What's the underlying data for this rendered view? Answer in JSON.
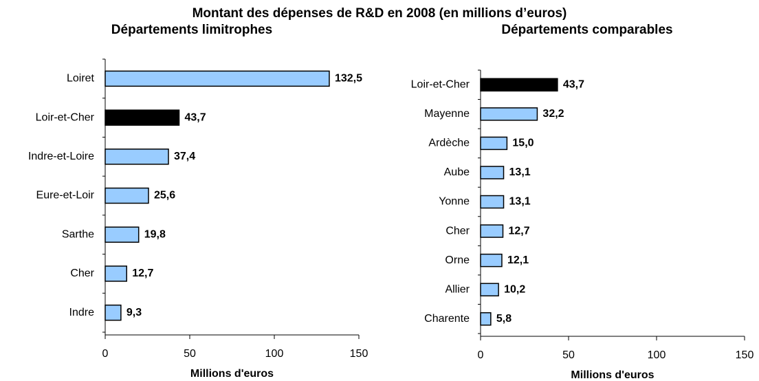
{
  "title": "Montant des dépenses de R&D en 2008 (en millions d’euros)",
  "chart_data": [
    {
      "type": "bar",
      "orientation": "horizontal",
      "title": "Départements limitrophes",
      "categories": [
        "Loiret",
        "Loir-et-Cher",
        "Indre-et-Loire",
        "Eure-et-Loir",
        "Sarthe",
        "Cher",
        "Indre"
      ],
      "values": [
        132.5,
        43.7,
        37.4,
        25.6,
        19.8,
        12.7,
        9.3
      ],
      "value_labels": [
        "132,5",
        "43,7",
        "37,4",
        "25,6",
        "19,8",
        "12,7",
        "9,3"
      ],
      "colors": [
        "#99ccff",
        "#000000",
        "#99ccff",
        "#99ccff",
        "#99ccff",
        "#99ccff",
        "#99ccff"
      ],
      "xlim": [
        0,
        150
      ],
      "xticks": [
        0,
        50,
        100,
        150
      ],
      "xlabel": "Millions d'euros"
    },
    {
      "type": "bar",
      "orientation": "horizontal",
      "title": "Départements comparables",
      "categories": [
        "Loir-et-Cher",
        "Mayenne",
        "Ardèche",
        "Aube",
        "Yonne",
        "Cher",
        "Orne",
        "Allier",
        "Charente"
      ],
      "values": [
        43.7,
        32.2,
        15.0,
        13.1,
        13.1,
        12.7,
        12.1,
        10.2,
        5.8
      ],
      "value_labels": [
        "43,7",
        "32,2",
        "15,0",
        "13,1",
        "13,1",
        "12,7",
        "12,1",
        "10,2",
        "5,8"
      ],
      "colors": [
        "#000000",
        "#99ccff",
        "#99ccff",
        "#99ccff",
        "#99ccff",
        "#99ccff",
        "#99ccff",
        "#99ccff",
        "#99ccff"
      ],
      "xlim": [
        0,
        150
      ],
      "xticks": [
        0,
        50,
        100,
        150
      ],
      "xlabel": "Millions d'euros"
    }
  ]
}
